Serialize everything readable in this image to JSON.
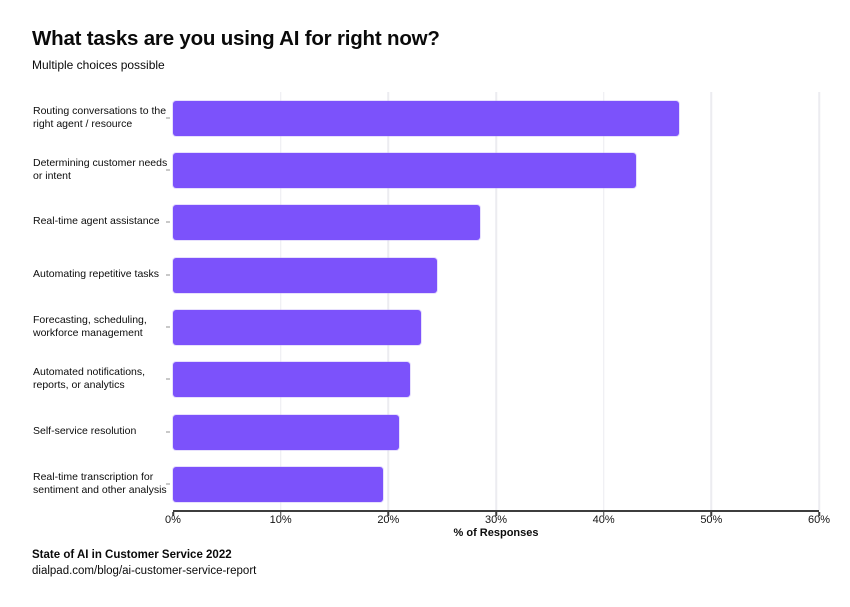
{
  "chart_data": {
    "type": "bar",
    "orientation": "horizontal",
    "title": "What tasks are you using AI for right now?",
    "subtitle": "Multiple choices possible",
    "categories": [
      "Routing conversations to the right agent / resource",
      "Determining customer needs or intent",
      "Real-time agent assistance",
      "Automating repetitive tasks",
      "Forecasting, scheduling, workforce management",
      "Automated notifications, reports, or analytics",
      "Self-service resolution",
      "Real-time transcription for sentiment and other analysis"
    ],
    "values": [
      47,
      43,
      28.5,
      24.5,
      23,
      22,
      21,
      19.5
    ],
    "xlabel": "% of Responses",
    "xlim": [
      0,
      60
    ],
    "x_tick_labels": [
      "0%",
      "10%",
      "20%",
      "30%",
      "40%",
      "50%",
      "60%"
    ],
    "grid": true,
    "legend": "none",
    "bar_color": "#7C52FB",
    "axis_color": "#3d3d3d",
    "gridline_color": "#ececf0"
  },
  "footer": {
    "source": "State of AI in Customer Service 2022",
    "url": "dialpad.com/blog/ai-customer-service-report"
  }
}
